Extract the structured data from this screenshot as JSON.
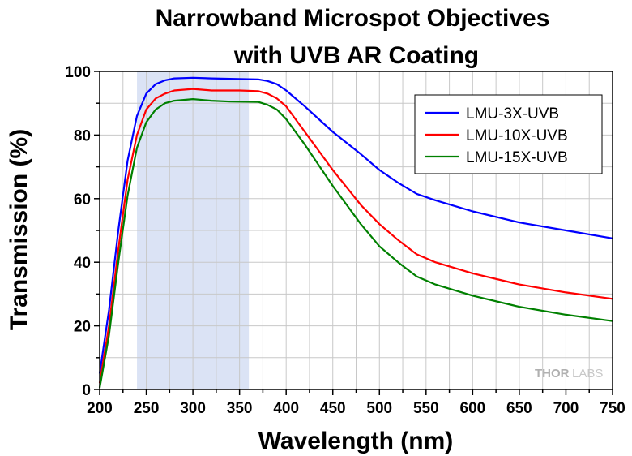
{
  "chart_data": {
    "type": "line",
    "title_line1": "Narrowband Microspot Objectives",
    "title_line2": "with UVB AR Coating",
    "xlabel": "Wavelength (nm)",
    "ylabel": "Transmission (%)",
    "xlim": [
      200,
      750
    ],
    "ylim": [
      0,
      100
    ],
    "x_ticks": [
      "200",
      "250",
      "300",
      "350",
      "400",
      "450",
      "500",
      "550",
      "600",
      "650",
      "700",
      "750"
    ],
    "y_ticks": [
      "0",
      "20",
      "40",
      "60",
      "80",
      "100"
    ],
    "grid": true,
    "legend_position": "top-right",
    "highlight_band": {
      "x_start": 240,
      "x_end": 360,
      "color": "#dbe3f5"
    },
    "series": [
      {
        "name": "LMU-3X-UVB",
        "color": "#0000ff",
        "points": [
          [
            200,
            5
          ],
          [
            210,
            25
          ],
          [
            220,
            50
          ],
          [
            230,
            72
          ],
          [
            240,
            86
          ],
          [
            250,
            93
          ],
          [
            260,
            96
          ],
          [
            270,
            97.2
          ],
          [
            280,
            97.8
          ],
          [
            300,
            98
          ],
          [
            320,
            97.8
          ],
          [
            350,
            97.6
          ],
          [
            370,
            97.5
          ],
          [
            380,
            97
          ],
          [
            390,
            96
          ],
          [
            400,
            94
          ],
          [
            420,
            89
          ],
          [
            450,
            81
          ],
          [
            480,
            74
          ],
          [
            500,
            69
          ],
          [
            520,
            65
          ],
          [
            540,
            61.5
          ],
          [
            560,
            59.5
          ],
          [
            600,
            56
          ],
          [
            650,
            52.5
          ],
          [
            700,
            50
          ],
          [
            750,
            47.5
          ]
        ]
      },
      {
        "name": "LMU-10X-UVB",
        "color": "#ff0000",
        "points": [
          [
            200,
            2
          ],
          [
            210,
            20
          ],
          [
            220,
            44
          ],
          [
            230,
            66
          ],
          [
            240,
            80
          ],
          [
            250,
            88
          ],
          [
            260,
            91.5
          ],
          [
            270,
            93
          ],
          [
            280,
            94
          ],
          [
            300,
            94.5
          ],
          [
            320,
            94
          ],
          [
            350,
            94
          ],
          [
            370,
            93.8
          ],
          [
            380,
            93
          ],
          [
            390,
            91.5
          ],
          [
            400,
            89
          ],
          [
            420,
            81
          ],
          [
            450,
            69
          ],
          [
            480,
            58
          ],
          [
            500,
            52
          ],
          [
            520,
            47
          ],
          [
            540,
            42.5
          ],
          [
            560,
            40
          ],
          [
            600,
            36.5
          ],
          [
            650,
            33
          ],
          [
            700,
            30.5
          ],
          [
            750,
            28.5
          ]
        ]
      },
      {
        "name": "LMU-15X-UVB",
        "color": "#008000",
        "points": [
          [
            200,
            0.5
          ],
          [
            210,
            17
          ],
          [
            220,
            40
          ],
          [
            230,
            61
          ],
          [
            240,
            76
          ],
          [
            250,
            84
          ],
          [
            260,
            88
          ],
          [
            270,
            90
          ],
          [
            280,
            90.8
          ],
          [
            300,
            91.3
          ],
          [
            320,
            90.8
          ],
          [
            340,
            90.5
          ],
          [
            370,
            90.4
          ],
          [
            380,
            89.5
          ],
          [
            390,
            88
          ],
          [
            400,
            85
          ],
          [
            420,
            77
          ],
          [
            450,
            64
          ],
          [
            480,
            52
          ],
          [
            500,
            45
          ],
          [
            520,
            40
          ],
          [
            540,
            35.5
          ],
          [
            560,
            33
          ],
          [
            600,
            29.5
          ],
          [
            650,
            26
          ],
          [
            700,
            23.5
          ],
          [
            750,
            21.5
          ]
        ]
      }
    ]
  },
  "watermark": {
    "part1": "THOR",
    "part2": "LABS"
  }
}
